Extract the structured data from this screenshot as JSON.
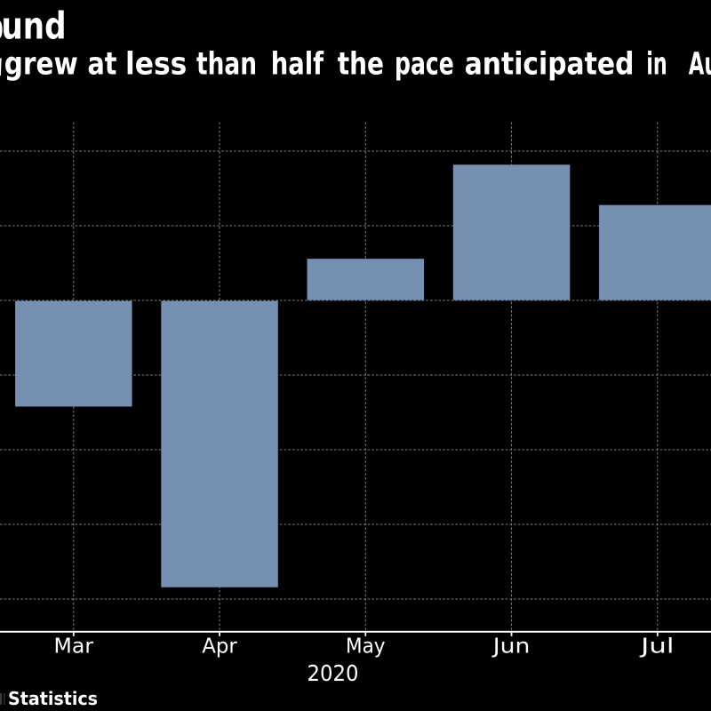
{
  "header": {
    "title_visible": "und",
    "subtitle_visible": "grew at less than half the pace anticipated in Au"
  },
  "footer": {
    "source_visible": "Statistics"
  },
  "chart_data": {
    "type": "bar",
    "categories": [
      "Mar",
      "Apr",
      "May",
      "Jun",
      "Jul"
    ],
    "values": [
      -7.1,
      -19.2,
      2.8,
      9.1,
      6.4
    ],
    "x_axis_period_label": "2020",
    "y_axis_labels_visible": false,
    "y_gridline_step_estimate": 5,
    "y_gridline_values_estimate": [
      10,
      5,
      0,
      -5,
      -10,
      -15,
      -20
    ],
    "grid": "dashed",
    "legend": "none",
    "note": "left/right edges of the chart image are cropped mid-text"
  },
  "style": {
    "background_color": "#000000",
    "bar_color": "#7690b2",
    "grid_color": "#818181",
    "axis_color": "#ffffff",
    "text_color": "#ffffff"
  }
}
